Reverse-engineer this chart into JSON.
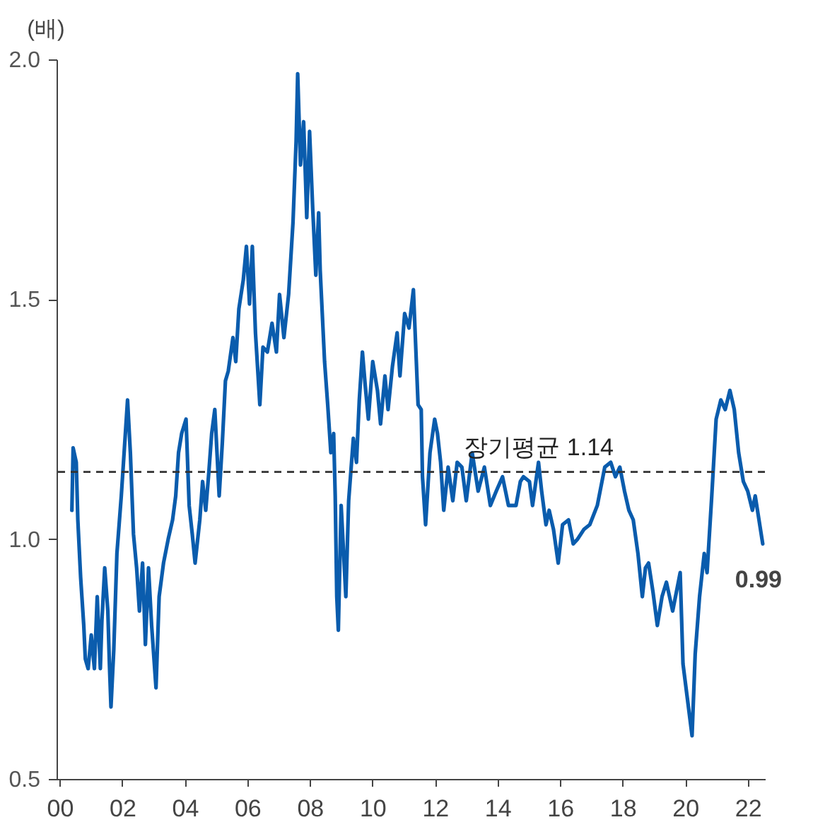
{
  "chart_data": {
    "type": "line",
    "ylabel": "(배)",
    "xlim": [
      -0.1,
      22.55
    ],
    "ylim": [
      0.5,
      2.0
    ],
    "xticks": [
      {
        "value": 0,
        "label": "00"
      },
      {
        "value": 2,
        "label": "02"
      },
      {
        "value": 4,
        "label": "04"
      },
      {
        "value": 6,
        "label": "06"
      },
      {
        "value": 8,
        "label": "08"
      },
      {
        "value": 10,
        "label": "10"
      },
      {
        "value": 12,
        "label": "12"
      },
      {
        "value": 14,
        "label": "14"
      },
      {
        "value": 16,
        "label": "16"
      },
      {
        "value": 18,
        "label": "18"
      },
      {
        "value": 20,
        "label": "20"
      },
      {
        "value": 22,
        "label": "22"
      }
    ],
    "yticks": [
      {
        "value": 0.5,
        "label": "0.5"
      },
      {
        "value": 1.0,
        "label": "1.0"
      },
      {
        "value": 1.5,
        "label": "1.5"
      },
      {
        "value": 2.0,
        "label": "2.0"
      }
    ],
    "grid": false,
    "marker": "none",
    "line_style": "solid",
    "x": [
      0.39,
      0.43,
      0.53,
      0.58,
      0.67,
      0.77,
      0.82,
      0.91,
      1.01,
      1.11,
      1.2,
      1.3,
      1.35,
      1.44,
      1.54,
      1.59,
      1.64,
      1.73,
      1.83,
      1.97,
      2.07,
      2.17,
      2.26,
      2.36,
      2.46,
      2.55,
      2.65,
      2.74,
      2.84,
      2.94,
      3.08,
      3.18,
      3.32,
      3.47,
      3.61,
      3.71,
      3.8,
      3.9,
      4.04,
      4.14,
      4.24,
      4.33,
      4.48,
      4.57,
      4.67,
      4.77,
      4.86,
      4.96,
      5.1,
      5.2,
      5.3,
      5.39,
      5.54,
      5.63,
      5.73,
      5.87,
      5.97,
      6.07,
      6.16,
      6.26,
      6.4,
      6.5,
      6.64,
      6.79,
      6.93,
      7.03,
      7.17,
      7.32,
      7.46,
      7.56,
      7.61,
      7.7,
      7.8,
      7.9,
      7.99,
      8.09,
      8.19,
      8.28,
      8.33,
      8.47,
      8.57,
      8.67,
      8.76,
      8.81,
      8.86,
      8.91,
      9.0,
      9.15,
      9.24,
      9.39,
      9.49,
      9.58,
      9.68,
      9.77,
      9.87,
      10.01,
      10.16,
      10.26,
      10.4,
      10.5,
      10.64,
      10.79,
      10.88,
      11.03,
      11.17,
      11.31,
      11.46,
      11.56,
      11.6,
      11.7,
      11.84,
      11.99,
      12.08,
      12.18,
      12.28,
      12.42,
      12.57,
      12.71,
      12.86,
      13.0,
      13.19,
      13.38,
      13.58,
      13.77,
      13.96,
      14.16,
      14.35,
      14.59,
      14.73,
      14.83,
      15.02,
      15.12,
      15.31,
      15.41,
      15.55,
      15.65,
      15.79,
      15.94,
      16.08,
      16.27,
      16.42,
      16.56,
      16.76,
      16.95,
      17.19,
      17.43,
      17.62,
      17.77,
      17.91,
      18.06,
      18.2,
      18.34,
      18.49,
      18.63,
      18.73,
      18.83,
      18.97,
      19.11,
      19.26,
      19.4,
      19.6,
      19.84,
      19.93,
      20.22,
      20.32,
      20.46,
      20.61,
      20.7,
      20.85,
      20.99,
      21.14,
      21.28,
      21.43,
      21.57,
      21.71,
      21.86,
      22.0,
      22.15,
      22.24,
      22.48
    ],
    "series": [
      {
        "color": "#0a5cad",
        "values": [
          1.06,
          1.19,
          1.16,
          1.04,
          0.92,
          0.82,
          0.75,
          0.73,
          0.8,
          0.73,
          0.88,
          0.73,
          0.83,
          0.94,
          0.85,
          0.74,
          0.65,
          0.77,
          0.97,
          1.09,
          1.19,
          1.29,
          1.18,
          1.01,
          0.94,
          0.85,
          0.95,
          0.78,
          0.94,
          0.82,
          0.69,
          0.88,
          0.95,
          1.0,
          1.04,
          1.09,
          1.18,
          1.22,
          1.25,
          1.07,
          1.01,
          0.95,
          1.04,
          1.12,
          1.06,
          1.14,
          1.22,
          1.27,
          1.09,
          1.2,
          1.33,
          1.35,
          1.42,
          1.37,
          1.48,
          1.54,
          1.61,
          1.49,
          1.61,
          1.43,
          1.28,
          1.4,
          1.39,
          1.45,
          1.39,
          1.51,
          1.42,
          1.51,
          1.66,
          1.83,
          1.97,
          1.78,
          1.87,
          1.67,
          1.85,
          1.69,
          1.55,
          1.68,
          1.56,
          1.37,
          1.28,
          1.18,
          1.22,
          1.09,
          0.88,
          0.81,
          1.07,
          0.88,
          1.08,
          1.21,
          1.16,
          1.29,
          1.39,
          1.32,
          1.25,
          1.37,
          1.31,
          1.24,
          1.34,
          1.27,
          1.36,
          1.43,
          1.34,
          1.47,
          1.44,
          1.52,
          1.28,
          1.27,
          1.13,
          1.03,
          1.18,
          1.25,
          1.22,
          1.16,
          1.06,
          1.15,
          1.08,
          1.16,
          1.15,
          1.08,
          1.18,
          1.1,
          1.15,
          1.07,
          1.1,
          1.13,
          1.07,
          1.07,
          1.12,
          1.13,
          1.12,
          1.07,
          1.16,
          1.1,
          1.03,
          1.06,
          1.02,
          0.95,
          1.03,
          1.04,
          0.99,
          1.0,
          1.02,
          1.03,
          1.07,
          1.15,
          1.16,
          1.13,
          1.15,
          1.1,
          1.06,
          1.04,
          0.97,
          0.88,
          0.94,
          0.95,
          0.89,
          0.82,
          0.88,
          0.91,
          0.85,
          0.93,
          0.74,
          0.59,
          0.76,
          0.88,
          0.97,
          0.93,
          1.09,
          1.25,
          1.29,
          1.27,
          1.31,
          1.27,
          1.18,
          1.12,
          1.1,
          1.06,
          1.09,
          0.99
        ]
      }
    ],
    "ref_lines": [
      {
        "axis": "y",
        "value": 1.14,
        "label": "장기평균 1.14",
        "color": "#333333",
        "line_style": "dashed"
      }
    ],
    "annotations": [
      {
        "text": "0.99",
        "x": 22.48,
        "y": 0.99
      }
    ]
  }
}
